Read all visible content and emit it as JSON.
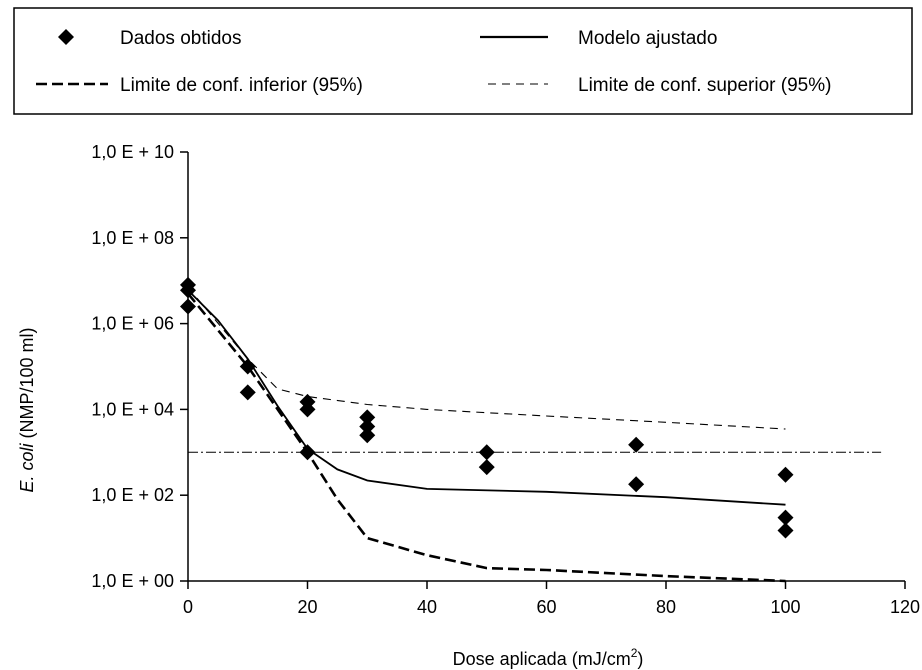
{
  "chart_data": {
    "type": "scatter",
    "yscale": "log",
    "xlim": [
      0,
      120
    ],
    "ylim": [
      1,
      10000000000
    ],
    "xticks": [
      0,
      20,
      40,
      60,
      80,
      100,
      120
    ],
    "xtick_labels": [
      "0",
      "20",
      "40",
      "60",
      "80",
      "100",
      "120"
    ],
    "yticks": [
      1,
      100,
      10000,
      1000000,
      100000000,
      10000000000
    ],
    "ytick_labels": [
      "1,0 E + 00",
      "1,0 E + 02",
      "1,0 E + 04",
      "1,0 E + 06",
      "1,0 E + 08",
      "1,0 E + 10"
    ],
    "xlabel_main": "Dose aplicada (mJ/cm",
    "xlabel_sup": "2",
    "xlabel_tail": ")",
    "ylabel_italic": "E. coli",
    "ylabel_rest": " (NMP/100 ml)",
    "legend_position": "top",
    "legend": [
      {
        "label": "Dados obtidos",
        "kind": "marker"
      },
      {
        "label": "Modelo ajustado",
        "kind": "solid"
      },
      {
        "label": "Limite de conf. inferior (95%)",
        "kind": "dash-thick"
      },
      {
        "label": "Limite de conf. superior (95%)",
        "kind": "dash-thin"
      }
    ],
    "series": [
      {
        "name": "Dados obtidos",
        "kind": "marker",
        "points": [
          [
            0,
            8000000
          ],
          [
            0,
            6000000
          ],
          [
            0,
            2500000
          ],
          [
            10,
            100000
          ],
          [
            10,
            25000
          ],
          [
            20,
            15000
          ],
          [
            20,
            10000
          ],
          [
            20,
            1000
          ],
          [
            30,
            6500
          ],
          [
            30,
            4000
          ],
          [
            30,
            2500
          ],
          [
            50,
            1000
          ],
          [
            50,
            450
          ],
          [
            75,
            1500
          ],
          [
            75,
            180
          ],
          [
            100,
            300
          ],
          [
            100,
            30
          ],
          [
            100,
            15
          ]
        ]
      },
      {
        "name": "Modelo ajustado",
        "kind": "solid",
        "points": [
          [
            0,
            6000000
          ],
          [
            5,
            1200000
          ],
          [
            10,
            150000
          ],
          [
            15,
            12000
          ],
          [
            20,
            1200
          ],
          [
            25,
            400
          ],
          [
            30,
            220
          ],
          [
            40,
            140
          ],
          [
            60,
            120
          ],
          [
            80,
            90
          ],
          [
            100,
            60
          ]
        ]
      },
      {
        "name": "Limite de conf. inferior (95%)",
        "kind": "dash-thick",
        "points": [
          [
            0,
            5000000
          ],
          [
            10,
            100000
          ],
          [
            20,
            1000
          ],
          [
            25,
            80
          ],
          [
            30,
            10
          ],
          [
            40,
            4
          ],
          [
            50,
            2
          ],
          [
            60,
            1.8
          ],
          [
            80,
            1.3
          ],
          [
            100,
            1
          ]
        ]
      },
      {
        "name": "Limite de conf. superior (95%)",
        "kind": "dash-thin",
        "points": [
          [
            0,
            7000000
          ],
          [
            10,
            150000
          ],
          [
            15,
            30000
          ],
          [
            20,
            20000
          ],
          [
            30,
            13000
          ],
          [
            40,
            10000
          ],
          [
            60,
            7000
          ],
          [
            80,
            5000
          ],
          [
            100,
            3500
          ]
        ]
      },
      {
        "kind": "reference-line",
        "points": [
          [
            0,
            1000
          ],
          [
            116,
            1000
          ]
        ]
      }
    ]
  }
}
